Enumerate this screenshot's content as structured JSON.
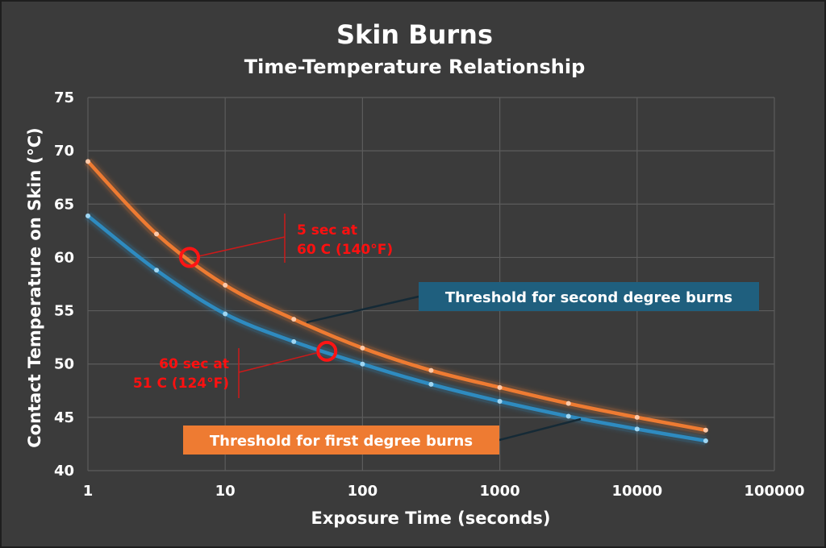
{
  "chart_data": {
    "type": "line",
    "title": "Skin Burns",
    "subtitle": "Time-Temperature Relationship",
    "xlabel": "Exposure Time (seconds)",
    "ylabel": "Contact Temperature on Skin (°C)",
    "xscale": "log",
    "xlim": [
      1,
      100000
    ],
    "ylim": [
      40,
      75
    ],
    "xticks": [
      "1",
      "10",
      "100",
      "1000",
      "10000",
      "100000"
    ],
    "yticks": [
      "40",
      "45",
      "50",
      "55",
      "60",
      "65",
      "70",
      "75"
    ],
    "grid": true,
    "series": [
      {
        "color": "#ee7b32",
        "x": [
          1,
          3.16,
          10,
          31.6,
          100,
          316,
          1000,
          3162,
          10000,
          31623
        ],
        "y": [
          69,
          62.2,
          57.4,
          54.2,
          51.5,
          49.4,
          47.8,
          46.3,
          45,
          43.8
        ]
      },
      {
        "color": "#2e8bc0",
        "x": [
          1,
          3.16,
          10,
          31.6,
          100,
          316,
          1000,
          3162,
          10000,
          31623
        ],
        "y": [
          63.9,
          58.8,
          54.7,
          52.1,
          50,
          48.1,
          46.5,
          45.1,
          43.9,
          42.8
        ]
      }
    ],
    "annotations": {
      "second_degree": {
        "text": "Threshold for second degree burns",
        "color": "#1f5f7e"
      },
      "first_degree": {
        "text": "Threshold for first degree burns",
        "color": "#ee7b32"
      },
      "point_high": {
        "x": 5.5,
        "y": 60,
        "line1": "5 sec at",
        "line2": "60 C (140°F)"
      },
      "point_low": {
        "x": 55,
        "y": 51.2,
        "line1": "60 sec at",
        "line2": "51 C (124°F)"
      }
    }
  }
}
